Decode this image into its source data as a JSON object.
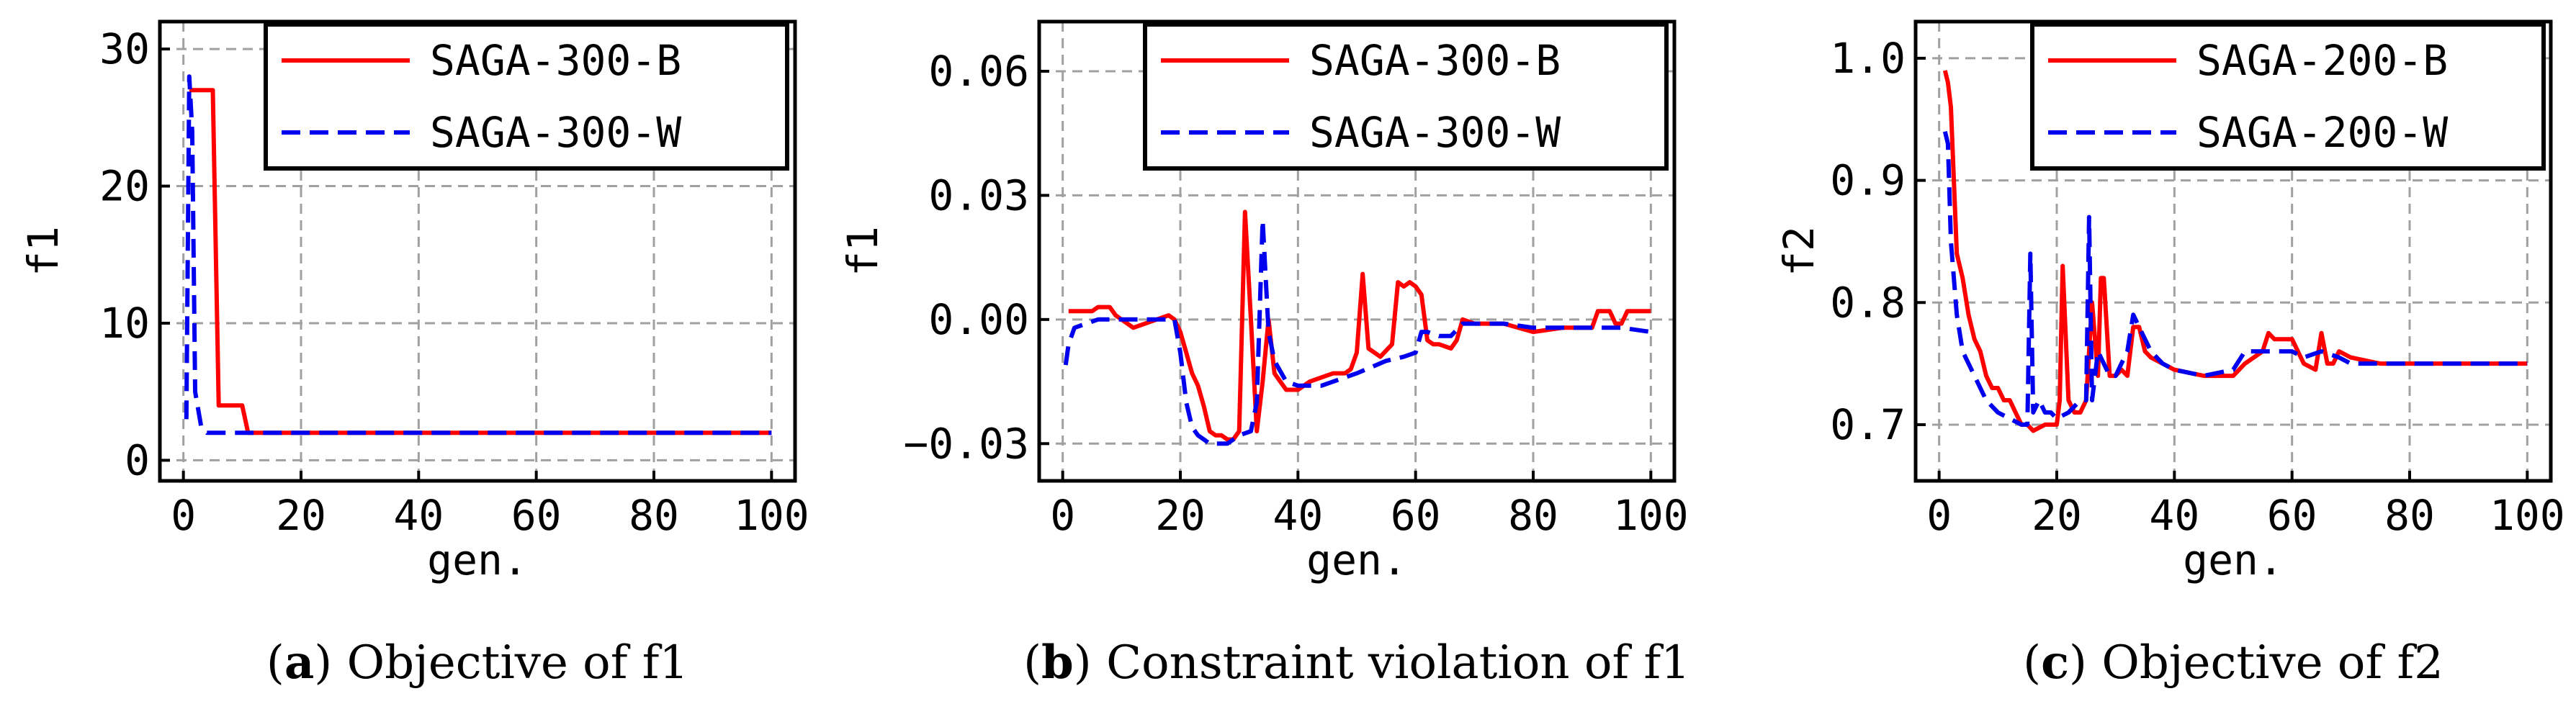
{
  "chart_data": [
    {
      "type": "line",
      "caption_letter": "a",
      "caption_text": "Objective of f1",
      "xlabel": "gen.",
      "ylabel": "f1",
      "xlim": [
        -4,
        104
      ],
      "ylim": [
        -1.5,
        32
      ],
      "xticks": [
        0,
        20,
        40,
        60,
        80,
        100
      ],
      "yticks": [
        0,
        10,
        20,
        30
      ],
      "ytick_labels": [
        "0",
        "10",
        "20",
        "30"
      ],
      "grid": true,
      "legend_position": "top-right",
      "series": [
        {
          "name": "SAGA-300-B",
          "color": "#ff0000",
          "style": "solid",
          "x": [
            1,
            2,
            3,
            4,
            5,
            6,
            7,
            8,
            9,
            10,
            11,
            12,
            15,
            20,
            25,
            30,
            35,
            40,
            50,
            60,
            70,
            80,
            90,
            100
          ],
          "y": [
            27,
            27,
            27,
            27,
            27,
            4,
            4,
            4,
            4,
            4,
            2,
            2,
            2,
            2,
            2,
            2,
            2,
            2,
            2,
            2,
            2,
            2,
            2,
            2
          ]
        },
        {
          "name": "SAGA-300-W",
          "color": "#0000ee",
          "style": "dashed",
          "x": [
            0.5,
            1,
            1.5,
            2,
            3,
            4,
            5,
            10,
            20,
            30,
            40,
            50,
            60,
            70,
            80,
            90,
            100
          ],
          "y": [
            3,
            28,
            24,
            5,
            2.5,
            2,
            2,
            2,
            2,
            2,
            2,
            2,
            2,
            2,
            2,
            2,
            2
          ]
        }
      ]
    },
    {
      "type": "line",
      "caption_letter": "b",
      "caption_text": "Constraint violation of f1",
      "xlabel": "gen.",
      "ylabel": "f1",
      "xlim": [
        -4,
        104
      ],
      "ylim": [
        -0.039,
        0.072
      ],
      "xticks": [
        0,
        20,
        40,
        60,
        80,
        100
      ],
      "yticks": [
        -0.03,
        0.0,
        0.03,
        0.06
      ],
      "ytick_labels": [
        "−0.03",
        "0.00",
        "0.03",
        "0.06"
      ],
      "grid": true,
      "legend_position": "top-right",
      "series": [
        {
          "name": "SAGA-300-B",
          "color": "#ff0000",
          "style": "solid",
          "x": [
            1,
            3,
            5,
            6,
            7,
            8,
            9,
            10,
            12,
            14,
            16,
            18,
            19,
            20,
            21,
            22,
            23,
            24,
            25,
            26,
            27,
            28,
            29,
            30,
            31,
            32,
            33,
            34,
            35,
            36,
            37,
            38,
            40,
            42,
            44,
            46,
            48,
            49,
            50,
            51,
            52,
            53,
            54,
            56,
            57,
            58,
            59,
            60,
            61,
            62,
            63,
            64,
            66,
            67,
            68,
            70,
            72,
            75,
            80,
            85,
            90,
            91,
            92,
            93,
            94,
            95,
            96,
            98,
            100
          ],
          "y": [
            0.002,
            0.002,
            0.002,
            0.003,
            0.003,
            0.003,
            0.001,
            0.0,
            -0.002,
            -0.001,
            0.0,
            0.001,
            0.0,
            -0.003,
            -0.008,
            -0.013,
            -0.016,
            -0.021,
            -0.027,
            -0.028,
            -0.028,
            -0.029,
            -0.029,
            -0.027,
            0.026,
            0.0,
            -0.027,
            -0.015,
            0.0,
            -0.013,
            -0.015,
            -0.017,
            -0.017,
            -0.015,
            -0.014,
            -0.013,
            -0.013,
            -0.012,
            -0.008,
            0.011,
            -0.007,
            -0.008,
            -0.009,
            -0.006,
            0.009,
            0.008,
            0.009,
            0.008,
            0.006,
            -0.005,
            -0.006,
            -0.006,
            -0.007,
            -0.005,
            0.0,
            -0.001,
            -0.001,
            -0.001,
            -0.003,
            -0.002,
            -0.002,
            0.002,
            0.002,
            0.002,
            -0.001,
            -0.001,
            0.002,
            0.002,
            0.002
          ]
        },
        {
          "name": "SAGA-300-W",
          "color": "#0000ee",
          "style": "dashed",
          "x": [
            0.5,
            1,
            2,
            4,
            6,
            8,
            10,
            12,
            14,
            16,
            18,
            19,
            20,
            21,
            22,
            23,
            24,
            25,
            26,
            27,
            28,
            30,
            32,
            33,
            34,
            35,
            36,
            38,
            40,
            42,
            44,
            46,
            50,
            55,
            58,
            60,
            61,
            62,
            64,
            66,
            68,
            70,
            72,
            75,
            80,
            85,
            90,
            95,
            100
          ],
          "y": [
            -0.011,
            -0.006,
            -0.002,
            -0.001,
            0.0,
            0.0,
            0.0,
            0.0,
            0.0,
            0.0,
            0.0,
            0.0,
            -0.008,
            -0.02,
            -0.026,
            -0.028,
            -0.029,
            -0.03,
            -0.03,
            -0.03,
            -0.03,
            -0.028,
            -0.027,
            -0.02,
            0.024,
            -0.003,
            -0.01,
            -0.015,
            -0.016,
            -0.016,
            -0.016,
            -0.015,
            -0.013,
            -0.01,
            -0.009,
            -0.008,
            -0.003,
            -0.003,
            -0.004,
            -0.004,
            -0.001,
            -0.001,
            -0.001,
            -0.001,
            -0.002,
            -0.002,
            -0.002,
            -0.002,
            -0.003
          ]
        }
      ]
    },
    {
      "type": "line",
      "caption_letter": "c",
      "caption_text": "Objective of f2",
      "xlabel": "gen.",
      "ylabel": "f2",
      "xlim": [
        -4,
        104
      ],
      "ylim": [
        0.654,
        1.03
      ],
      "xticks": [
        0,
        20,
        40,
        60,
        80,
        100
      ],
      "yticks": [
        0.7,
        0.8,
        0.9,
        1.0
      ],
      "ytick_labels": [
        "0.7",
        "0.8",
        "0.9",
        "1.0"
      ],
      "grid": true,
      "legend_position": "top-right",
      "series": [
        {
          "name": "SAGA-200-B",
          "color": "#ff0000",
          "style": "solid",
          "x": [
            1,
            1.5,
            2,
            2.5,
            3,
            4,
            5,
            6,
            7,
            8,
            9,
            10,
            11,
            12,
            13,
            14,
            15,
            16,
            18,
            19,
            20,
            20.5,
            21,
            22,
            23,
            24,
            25,
            26,
            27,
            27.5,
            28,
            29,
            30,
            31,
            32,
            33,
            34,
            35,
            36,
            38,
            40,
            45,
            50,
            52,
            55,
            56,
            57,
            58,
            59,
            60,
            62,
            64,
            65,
            66,
            67,
            68,
            70,
            75,
            80,
            90,
            100
          ],
          "y": [
            0.99,
            0.98,
            0.96,
            0.9,
            0.84,
            0.82,
            0.79,
            0.77,
            0.76,
            0.74,
            0.73,
            0.73,
            0.72,
            0.72,
            0.71,
            0.7,
            0.7,
            0.695,
            0.7,
            0.7,
            0.7,
            0.72,
            0.83,
            0.72,
            0.71,
            0.71,
            0.72,
            0.8,
            0.74,
            0.82,
            0.82,
            0.74,
            0.74,
            0.745,
            0.74,
            0.78,
            0.78,
            0.76,
            0.755,
            0.75,
            0.745,
            0.74,
            0.74,
            0.75,
            0.76,
            0.775,
            0.77,
            0.77,
            0.77,
            0.77,
            0.75,
            0.745,
            0.775,
            0.75,
            0.75,
            0.76,
            0.755,
            0.75,
            0.75,
            0.75,
            0.75
          ]
        },
        {
          "name": "SAGA-200-W",
          "color": "#0000ee",
          "style": "dashed",
          "x": [
            1,
            1.5,
            2,
            3,
            4,
            5,
            6,
            8,
            10,
            12,
            14,
            15,
            15.5,
            16,
            17,
            18,
            19,
            20,
            22,
            24,
            25,
            25.5,
            26,
            27,
            28,
            29,
            30,
            31,
            32,
            33,
            34,
            36,
            38,
            40,
            45,
            50,
            52,
            55,
            60,
            62,
            65,
            68,
            70,
            75,
            80,
            90,
            100
          ],
          "y": [
            0.94,
            0.93,
            0.85,
            0.79,
            0.76,
            0.75,
            0.74,
            0.72,
            0.71,
            0.705,
            0.7,
            0.7,
            0.84,
            0.71,
            0.72,
            0.71,
            0.71,
            0.705,
            0.71,
            0.72,
            0.72,
            0.87,
            0.72,
            0.76,
            0.75,
            0.74,
            0.74,
            0.75,
            0.76,
            0.79,
            0.78,
            0.76,
            0.75,
            0.745,
            0.74,
            0.745,
            0.76,
            0.76,
            0.76,
            0.755,
            0.76,
            0.755,
            0.75,
            0.75,
            0.75,
            0.75,
            0.75
          ]
        }
      ]
    }
  ]
}
